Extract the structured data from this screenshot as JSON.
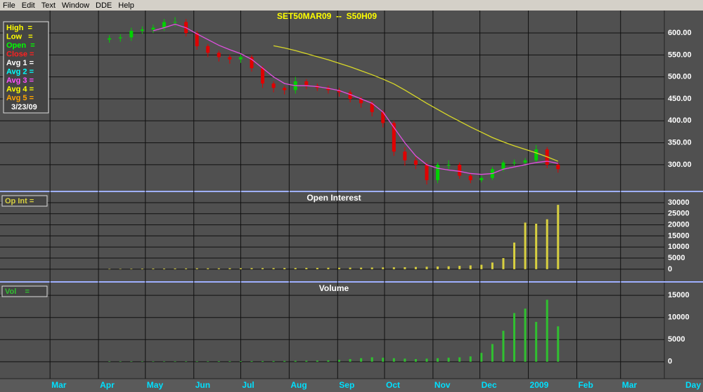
{
  "menu": [
    "File",
    "Edit",
    "Text",
    "Window",
    "DDE",
    "Help"
  ],
  "x_axis": {
    "label": "Day",
    "xlim": [
      -32,
      393
    ],
    "xticks": [
      {
        "value": 0,
        "label": "Mar"
      },
      {
        "value": 31,
        "label": "Apr"
      },
      {
        "value": 61,
        "label": "May"
      },
      {
        "value": 92,
        "label": "Jun"
      },
      {
        "value": 122,
        "label": "Jul"
      },
      {
        "value": 153,
        "label": "Aug"
      },
      {
        "value": 184,
        "label": "Sep"
      },
      {
        "value": 214,
        "label": "Oct"
      },
      {
        "value": 245,
        "label": "Nov"
      },
      {
        "value": 275,
        "label": "Dec"
      },
      {
        "value": 306,
        "label": "2009"
      },
      {
        "value": 337,
        "label": "Feb"
      },
      {
        "value": 365,
        "label": "Mar"
      }
    ]
  },
  "chart_data": [
    {
      "type": "candlestick",
      "title": "SET50MAR09  --  S50H09",
      "x": [
        38,
        45,
        52,
        59,
        66,
        73,
        80,
        87,
        94,
        101,
        108,
        115,
        122,
        129,
        136,
        143,
        150,
        157,
        164,
        171,
        178,
        185,
        192,
        199,
        206,
        213,
        220,
        227,
        234,
        241,
        248,
        255,
        262,
        269,
        276,
        283,
        290,
        297,
        304,
        311,
        318,
        325
      ],
      "open": [
        585,
        588,
        590,
        605,
        608,
        612,
        625,
        625,
        600,
        570,
        555,
        545,
        540,
        545,
        520,
        485,
        475,
        470,
        490,
        480,
        475,
        470,
        465,
        450,
        440,
        420,
        395,
        330,
        310,
        300,
        265,
        300,
        300,
        275,
        265,
        270,
        290,
        305,
        305,
        310,
        335,
        300
      ],
      "high": [
        595,
        597,
        612,
        615,
        619,
        632,
        636,
        632,
        605,
        575,
        560,
        550,
        552,
        550,
        525,
        490,
        480,
        500,
        495,
        485,
        480,
        475,
        470,
        455,
        445,
        425,
        400,
        340,
        318,
        305,
        305,
        310,
        305,
        280,
        275,
        295,
        310,
        312,
        315,
        345,
        340,
        305
      ],
      "low": [
        578,
        580,
        582,
        598,
        600,
        605,
        615,
        592,
        562,
        545,
        535,
        530,
        532,
        512,
        475,
        465,
        460,
        462,
        472,
        468,
        462,
        455,
        442,
        430,
        410,
        385,
        320,
        298,
        290,
        255,
        258,
        290,
        268,
        258,
        260,
        265,
        285,
        298,
        298,
        305,
        292,
        282
      ],
      "close": [
        588,
        590,
        605,
        608,
        612,
        625,
        625,
        600,
        570,
        555,
        545,
        540,
        545,
        520,
        485,
        475,
        470,
        490,
        480,
        475,
        470,
        465,
        450,
        440,
        420,
        395,
        330,
        310,
        300,
        265,
        300,
        300,
        275,
        265,
        270,
        290,
        305,
        305,
        310,
        335,
        300,
        290
      ],
      "up_color": "#00d000",
      "down_color": "#e00000",
      "lines": [
        {
          "color": "#e050e0",
          "values": [
            null,
            null,
            null,
            null,
            605,
            612,
            620,
            612,
            598,
            585,
            572,
            562,
            553,
            540,
            520,
            500,
            485,
            480,
            480,
            478,
            474,
            469,
            460,
            450,
            440,
            420,
            385,
            350,
            320,
            300,
            292,
            288,
            285,
            280,
            278,
            280,
            290,
            295,
            300,
            305,
            308,
            303
          ]
        },
        {
          "color": "#d8d828",
          "values": [
            null,
            null,
            null,
            null,
            null,
            null,
            null,
            null,
            null,
            null,
            null,
            null,
            null,
            null,
            null,
            571,
            566,
            560,
            553,
            546,
            539,
            531,
            523,
            514,
            505,
            495,
            484,
            470,
            455,
            440,
            426,
            412,
            399,
            386,
            374,
            362,
            352,
            343,
            335,
            327,
            318,
            308
          ]
        }
      ],
      "ylim": [
        244,
        648
      ],
      "yticks": [
        {
          "value": 300,
          "label": "300.00"
        },
        {
          "value": 350,
          "label": "350.00"
        },
        {
          "value": 400,
          "label": "400.00"
        },
        {
          "value": 450,
          "label": "450.00"
        },
        {
          "value": 500,
          "label": "500.00"
        },
        {
          "value": 550,
          "label": "550.00"
        },
        {
          "value": 600,
          "label": "600.00"
        }
      ],
      "legend": {
        "items": [
          {
            "label": "High  =",
            "color": "#ffff00"
          },
          {
            "label": "Low   =",
            "color": "#ffff00"
          },
          {
            "label": "Open  =",
            "color": "#00ff00"
          },
          {
            "label": "Close =",
            "color": "#ff2020"
          },
          {
            "label": "Avg 1 =",
            "color": "#ffffff"
          },
          {
            "label": "Avg 2 =",
            "color": "#00ffff"
          },
          {
            "label": "Avg 3 =",
            "color": "#ff50ff"
          },
          {
            "label": "Avg 4 =",
            "color": "#ffff00"
          },
          {
            "label": "Avg 5 =",
            "color": "#ffa500"
          }
        ],
        "date": "3/23/09"
      }
    },
    {
      "type": "bar",
      "title": "Open Interest",
      "legend": "Op Int =",
      "color": "#d8d040",
      "x": [
        38,
        45,
        52,
        59,
        66,
        73,
        80,
        87,
        94,
        101,
        108,
        115,
        122,
        129,
        136,
        143,
        150,
        157,
        164,
        171,
        178,
        185,
        192,
        199,
        206,
        213,
        220,
        227,
        234,
        241,
        248,
        255,
        262,
        269,
        276,
        283,
        290,
        297,
        304,
        311,
        318,
        325
      ],
      "values": [
        100,
        150,
        200,
        250,
        300,
        300,
        350,
        350,
        400,
        400,
        400,
        450,
        450,
        500,
        500,
        500,
        550,
        550,
        600,
        600,
        650,
        650,
        700,
        700,
        750,
        800,
        850,
        900,
        1000,
        1100,
        1200,
        1300,
        1500,
        1700,
        2000,
        3000,
        5000,
        12000,
        21000,
        20500,
        22500,
        29000
      ],
      "ylim": [
        -5100,
        34100
      ],
      "yticks": [
        0,
        5000,
        10000,
        15000,
        20000,
        25000,
        30000
      ]
    },
    {
      "type": "bar",
      "title": "Volume",
      "legend": "Vol    =",
      "color": "#30c030",
      "x": [
        38,
        45,
        52,
        59,
        66,
        73,
        80,
        87,
        94,
        101,
        108,
        115,
        122,
        129,
        136,
        143,
        150,
        157,
        164,
        171,
        178,
        185,
        192,
        199,
        206,
        213,
        220,
        227,
        234,
        241,
        248,
        255,
        262,
        269,
        276,
        283,
        290,
        297,
        304,
        311,
        318,
        325
      ],
      "values": [
        50,
        60,
        60,
        70,
        80,
        80,
        90,
        90,
        100,
        100,
        120,
        120,
        130,
        150,
        150,
        160,
        180,
        200,
        220,
        250,
        300,
        400,
        600,
        800,
        1000,
        900,
        800,
        700,
        600,
        700,
        800,
        900,
        1000,
        1200,
        2000,
        4000,
        7000,
        11000,
        12000,
        9000,
        14000,
        8000
      ],
      "ylim": [
        -3830,
        17560
      ],
      "yticks": [
        0,
        5000,
        10000,
        15000
      ]
    }
  ]
}
